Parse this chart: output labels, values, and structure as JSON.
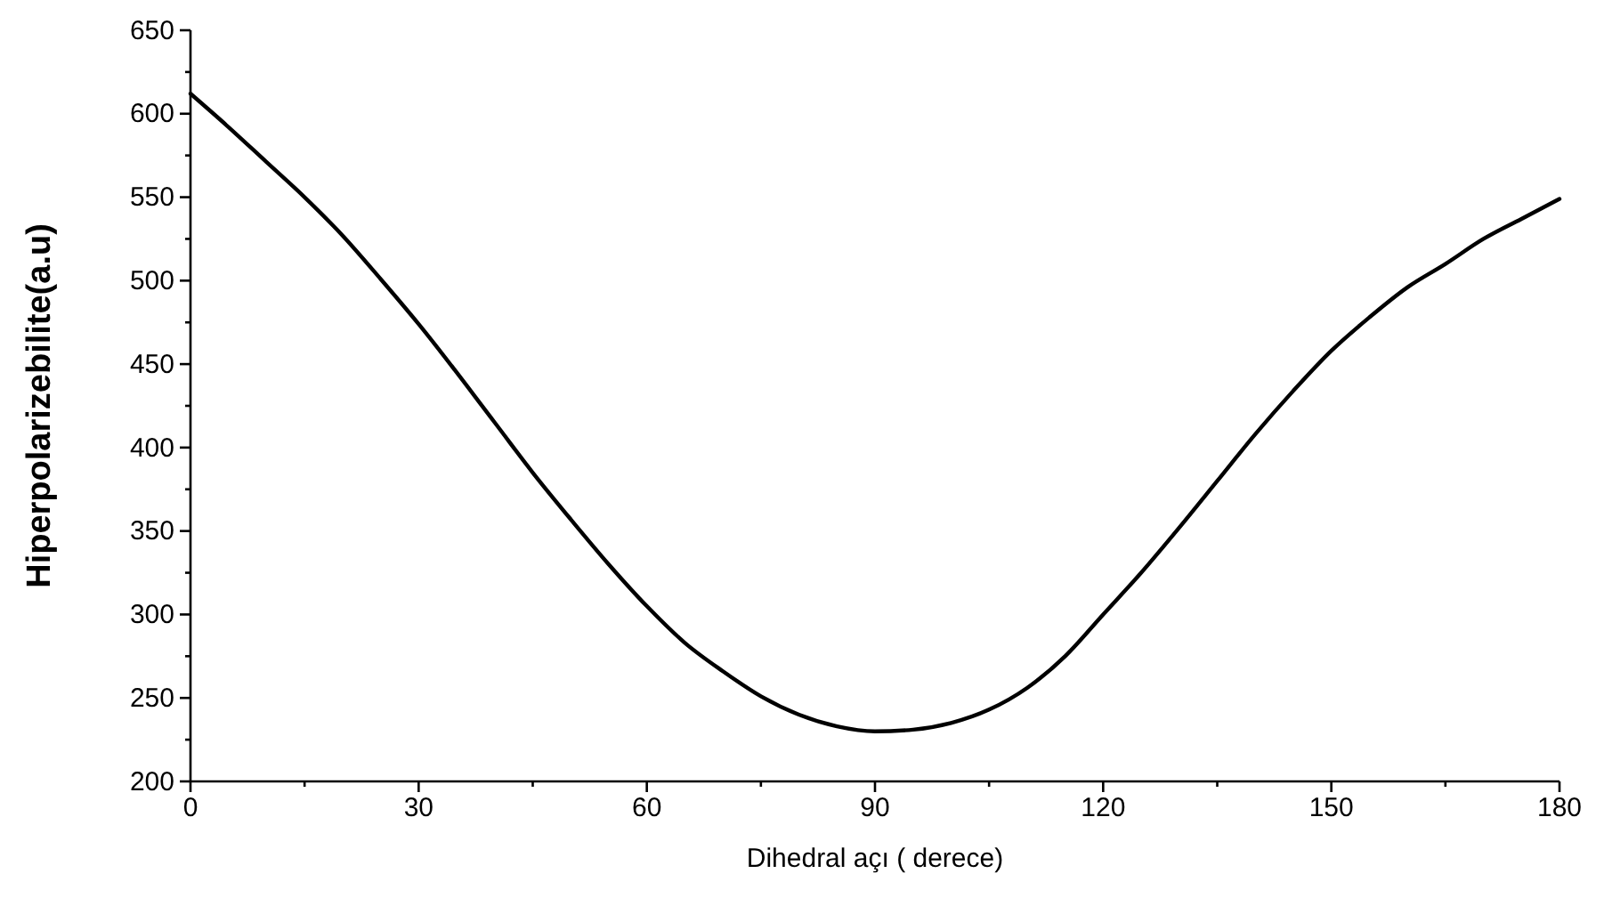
{
  "chart_data": {
    "type": "line",
    "xlabel": "Dihedral açı ( derece)",
    "ylabel": "Hiperpolarizebilite(a.u)",
    "x": [
      0,
      5,
      10,
      15,
      20,
      25,
      30,
      40,
      45,
      50,
      55,
      60,
      65,
      70,
      75,
      80,
      85,
      90,
      95,
      100,
      105,
      110,
      115,
      120,
      125,
      130,
      135,
      140,
      145,
      150,
      155,
      160,
      165,
      170,
      175,
      180
    ],
    "series": [
      {
        "color": "#000000",
        "values": [
          612,
          592,
          571,
          550,
          527,
          501,
          474,
          415,
          385,
          357,
          330,
          305,
          283,
          266,
          251,
          240,
          233,
          230,
          231,
          235,
          243,
          256,
          275,
          300,
          325,
          352,
          380,
          408,
          434,
          458,
          478,
          496,
          510,
          525,
          537,
          549
        ]
      }
    ],
    "xlim": [
      0,
      180
    ],
    "xticks": [
      0,
      {
        "value": 15,
        "label": null
      },
      30,
      {
        "value": 45,
        "label": null
      },
      60,
      {
        "value": 75,
        "label": null
      },
      90,
      {
        "value": 105,
        "label": null
      },
      120,
      {
        "value": 135,
        "label": null
      },
      150,
      {
        "value": 165,
        "label": null
      },
      180
    ],
    "ylim": [
      200,
      650
    ],
    "yticks": [
      200,
      {
        "value": 225,
        "label": null
      },
      250,
      {
        "value": 275,
        "label": null
      },
      300,
      {
        "value": 325,
        "label": null
      },
      350,
      {
        "value": 375,
        "label": null
      },
      400,
      {
        "value": 425,
        "label": null
      },
      450,
      {
        "value": 475,
        "label": null
      },
      500,
      {
        "value": 525,
        "label": null
      },
      550,
      {
        "value": 575,
        "label": null
      },
      600,
      {
        "value": 625,
        "label": null
      },
      650
    ],
    "grid": false,
    "marker": "none",
    "line_style": "solid"
  }
}
